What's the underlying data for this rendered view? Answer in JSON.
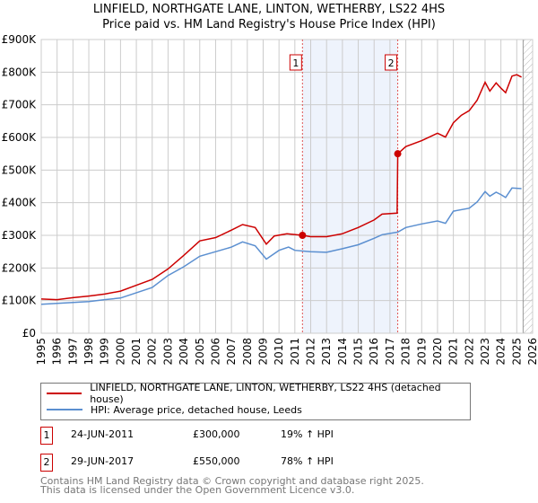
{
  "chart_data": {
    "type": "line",
    "title": "LINFIELD, NORTHGATE LANE, LINTON, WETHERBY, LS22 4HS",
    "subtitle": "Price paid vs. HM Land Registry's House Price Index (HPI)",
    "xlim": [
      1995,
      2026
    ],
    "ylim": [
      0,
      900000
    ],
    "y_ticks": [
      {
        "v": 0,
        "label": "£0"
      },
      {
        "v": 100000,
        "label": "£100K"
      },
      {
        "v": 200000,
        "label": "£200K"
      },
      {
        "v": 300000,
        "label": "£300K"
      },
      {
        "v": 400000,
        "label": "£400K"
      },
      {
        "v": 500000,
        "label": "£500K"
      },
      {
        "v": 600000,
        "label": "£600K"
      },
      {
        "v": 700000,
        "label": "£700K"
      },
      {
        "v": 800000,
        "label": "£800K"
      },
      {
        "v": 900000,
        "label": "£900K"
      }
    ],
    "x_ticks": [
      "1995",
      "1996",
      "1997",
      "1998",
      "1999",
      "2000",
      "2001",
      "2002",
      "2003",
      "2004",
      "2005",
      "2006",
      "2007",
      "2008",
      "2009",
      "2010",
      "2011",
      "2012",
      "2013",
      "2014",
      "2015",
      "2016",
      "2017",
      "2018",
      "2019",
      "2020",
      "2021",
      "2022",
      "2023",
      "2024",
      "2025",
      "2026"
    ],
    "grid": true,
    "shaded_range": [
      2011.48,
      2017.49
    ],
    "forecast_hatch_from": 2025.4,
    "series": [
      {
        "name": "LINFIELD, NORTHGATE LANE, LINTON, WETHERBY, LS22 4HS (detached house)",
        "color": "#cc0000",
        "x": [
          1995,
          1996,
          1997,
          1998,
          1999,
          2000,
          2001,
          2002,
          2003,
          2004,
          2005,
          2006,
          2007,
          2007.7,
          2008.5,
          2009.2,
          2009.7,
          2010.5,
          2011.48,
          2012,
          2013,
          2014,
          2015,
          2016,
          2016.5,
          2017.45,
          2017.49,
          2018,
          2019,
          2020,
          2020.5,
          2021,
          2021.5,
          2022,
          2022.5,
          2023,
          2023.3,
          2023.7,
          2024,
          2024.3,
          2024.7,
          2025,
          2025.3
        ],
        "y": [
          105000,
          103000,
          109000,
          114000,
          120000,
          129000,
          147000,
          165000,
          197000,
          239000,
          283000,
          293000,
          316000,
          333000,
          324000,
          273000,
          298000,
          305000,
          300000,
          296000,
          296000,
          305000,
          324000,
          347000,
          365000,
          368000,
          550000,
          572000,
          590000,
          613000,
          601000,
          645000,
          668000,
          682000,
          714000,
          769000,
          742000,
          767000,
          751000,
          737000,
          788000,
          792000,
          785000
        ]
      },
      {
        "name": "HPI: Average price, detached house, Leeds",
        "color": "#5b8fd0",
        "x": [
          1995,
          1997,
          1998,
          1999,
          2000,
          2001,
          2002,
          2003,
          2004,
          2005,
          2006,
          2007,
          2007.7,
          2008.5,
          2009.2,
          2010,
          2010.6,
          2011,
          2012,
          2013,
          2014,
          2015,
          2016,
          2016.5,
          2017.5,
          2018,
          2019,
          2020,
          2020.5,
          2021,
          2022,
          2022.5,
          2023,
          2023.3,
          2023.7,
          2024,
          2024.3,
          2024.7,
          2025.3
        ],
        "y": [
          89000,
          94000,
          97000,
          103000,
          108000,
          124000,
          140000,
          177000,
          204000,
          236000,
          250000,
          264000,
          280000,
          268000,
          227000,
          254000,
          264000,
          254000,
          250000,
          248000,
          259000,
          271000,
          291000,
          302000,
          310000,
          324000,
          335000,
          344000,
          337000,
          374000,
          383000,
          402000,
          434000,
          420000,
          432000,
          425000,
          416000,
          445000,
          443000
        ]
      }
    ],
    "sales": [
      {
        "id": "1",
        "x": 2011.48,
        "price": 300000,
        "date": "24-JUN-2011",
        "price_label": "£300,000",
        "hpi": "19% ↑ HPI"
      },
      {
        "id": "2",
        "x": 2017.49,
        "price": 550000,
        "date": "29-JUN-2017",
        "price_label": "£550,000",
        "hpi": "78% ↑ HPI"
      }
    ]
  },
  "footer": {
    "line1": "Contains HM Land Registry data © Crown copyright and database right 2025.",
    "line2": "This data is licensed under the Open Government Licence v3.0."
  }
}
